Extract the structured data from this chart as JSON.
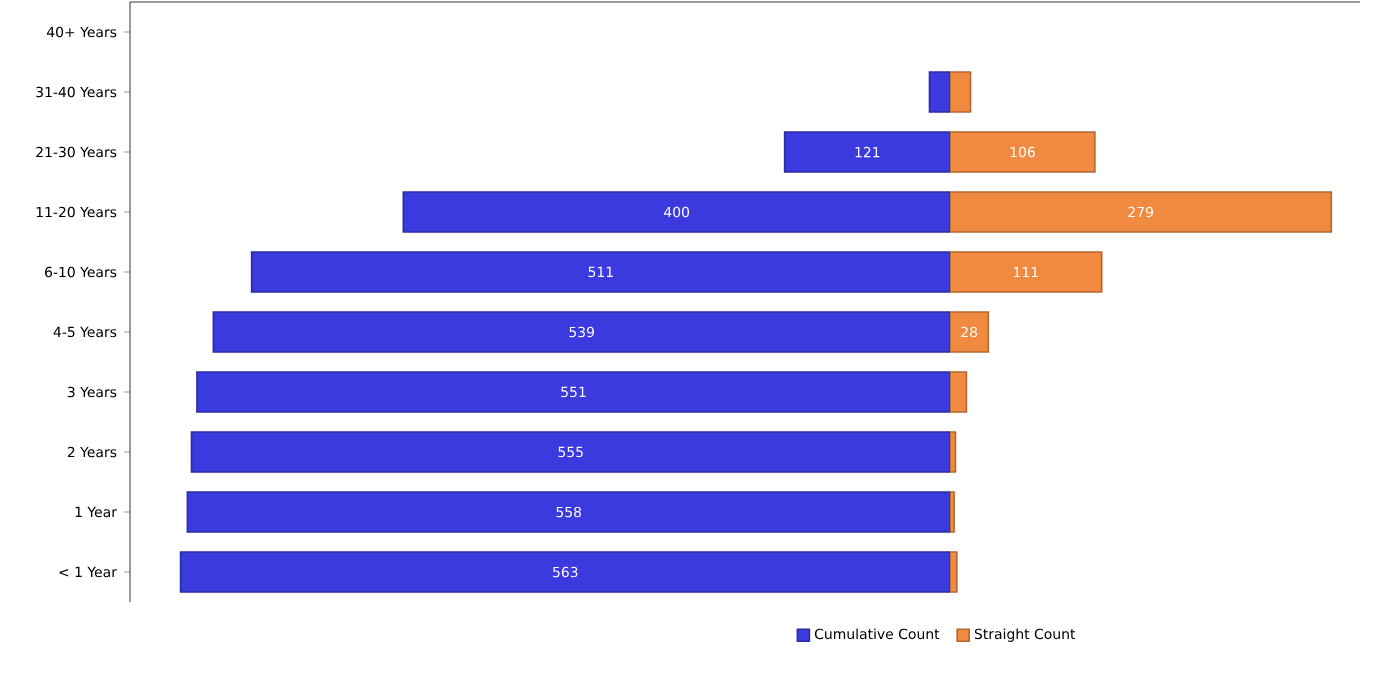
{
  "chart_data": [
    {
      "type": "bar",
      "orientation": "horizontal",
      "categories": [
        "40+ Years",
        "31-40 Years",
        "21-30 Years",
        "11-20 Years",
        "6-10 Years",
        "4-5 Years",
        "3 Years",
        "2 Years",
        "1 Year",
        "< 1 Year"
      ],
      "series": [
        {
          "name": "Cumulative Count",
          "color": "#3a3ade",
          "values": [
            0,
            15,
            121,
            400,
            511,
            539,
            551,
            555,
            558,
            563
          ],
          "value_labels": [
            null,
            null,
            "121",
            "400",
            "511",
            "539",
            "551",
            "555",
            "558",
            "563"
          ]
        }
      ],
      "xlim": [
        600,
        0
      ],
      "tick_labels": "y",
      "legend": "bottom"
    },
    {
      "type": "bar",
      "orientation": "horizontal",
      "categories": [
        null,
        null,
        null,
        null,
        null,
        null,
        null,
        null,
        null,
        null
      ],
      "series": [
        {
          "name": "Straight Count",
          "color": "#f08a40",
          "values": [
            0,
            15,
            106,
            279,
            111,
            28,
            12,
            4,
            3,
            5
          ],
          "value_labels": [
            null,
            null,
            "106",
            "279",
            "111",
            "28",
            null,
            null,
            null,
            null
          ]
        }
      ],
      "xlim": [
        0,
        300
      ],
      "tick_labels": false,
      "legend": "bottom"
    }
  ]
}
